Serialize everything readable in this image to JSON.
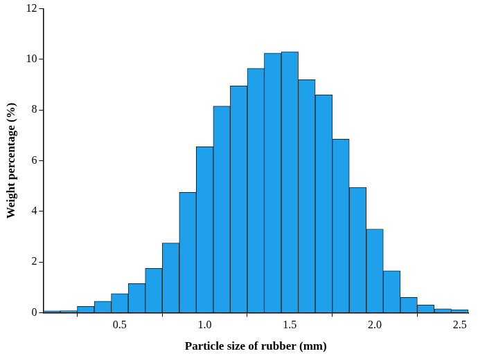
{
  "chart_data": {
    "type": "histogram",
    "x_label": "Particle size of rubber (mm)",
    "y_label": "Weight percentage (%)",
    "bins": [
      0.05,
      0.15,
      0.25,
      0.35,
      0.45,
      0.55,
      0.65,
      0.75,
      0.85,
      0.95,
      1.05,
      1.15,
      1.25,
      1.35,
      1.45,
      1.55,
      1.65,
      1.75,
      1.85,
      1.95,
      2.05,
      2.15,
      2.25,
      2.35,
      2.45,
      2.55
    ],
    "values": [
      0.07,
      0.08,
      0.25,
      0.45,
      0.75,
      1.15,
      1.75,
      2.75,
      4.75,
      6.55,
      8.15,
      8.95,
      9.65,
      10.25,
      10.3,
      9.2,
      8.6,
      6.85,
      4.95,
      3.3,
      1.65,
      0.6,
      0.3,
      0.15,
      0.12
    ],
    "color": "#1fa0ea",
    "xlim": [
      0.05,
      2.55
    ],
    "ylim": [
      0,
      12
    ],
    "xticks": [
      {
        "value": 0.5,
        "label": "0.5"
      },
      {
        "value": 1,
        "label": "1.0"
      },
      {
        "value": 1.5,
        "label": "1.5"
      },
      {
        "value": 2,
        "label": "2.0"
      },
      {
        "value": 2.5,
        "label": "2.5"
      }
    ],
    "yticks": [
      0,
      2,
      4,
      6,
      8,
      10,
      12
    ],
    "grid": false
  }
}
